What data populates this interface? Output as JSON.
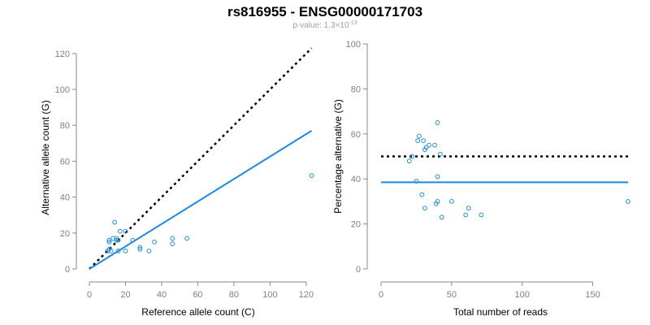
{
  "title": "rs816955 - ENSG00000171703",
  "subtitle": {
    "prefix": "p-value: 1.3×10",
    "exponent": "-13"
  },
  "colors": {
    "points": "#1f8fd6",
    "fit_line": "#1e88e5",
    "reference_line": "#000000",
    "axis": "#888888",
    "tick_text": "#7f7f7f"
  },
  "chart_data": [
    {
      "type": "scatter",
      "title": "",
      "xlabel": "Reference allele count (C)",
      "ylabel": "Alternative allele count (G)",
      "xlim": [
        0,
        125
      ],
      "ylim": [
        0,
        124
      ],
      "xticks": [
        0,
        20,
        40,
        60,
        80,
        100,
        120
      ],
      "yticks": [
        0,
        20,
        40,
        60,
        80,
        100,
        120
      ],
      "points": [
        {
          "x": 10,
          "y": 10
        },
        {
          "x": 11,
          "y": 11
        },
        {
          "x": 11,
          "y": 15
        },
        {
          "x": 11,
          "y": 16
        },
        {
          "x": 12,
          "y": 10
        },
        {
          "x": 13,
          "y": 17
        },
        {
          "x": 14,
          "y": 26
        },
        {
          "x": 15,
          "y": 17
        },
        {
          "x": 15,
          "y": 16
        },
        {
          "x": 16,
          "y": 16
        },
        {
          "x": 16,
          "y": 10
        },
        {
          "x": 17,
          "y": 21
        },
        {
          "x": 20,
          "y": 10
        },
        {
          "x": 20,
          "y": 21
        },
        {
          "x": 24,
          "y": 16
        },
        {
          "x": 28,
          "y": 12
        },
        {
          "x": 28,
          "y": 11
        },
        {
          "x": 33,
          "y": 10
        },
        {
          "x": 36,
          "y": 15
        },
        {
          "x": 46,
          "y": 17
        },
        {
          "x": 46,
          "y": 14
        },
        {
          "x": 54,
          "y": 17
        },
        {
          "x": 123,
          "y": 52
        }
      ],
      "lines": [
        {
          "name": "expected (equal counts)",
          "style": "dotted",
          "color": "#000000",
          "x": [
            0,
            123
          ],
          "y": [
            0,
            123
          ]
        },
        {
          "name": "fit",
          "style": "solid",
          "color": "#1e88e5",
          "x": [
            0,
            123
          ],
          "y": [
            0,
            77
          ]
        }
      ]
    },
    {
      "type": "scatter",
      "title": "",
      "xlabel": "Total number of reads",
      "ylabel": "Percentage alternative (G)",
      "xlim": [
        0,
        175
      ],
      "ylim": [
        0,
        100
      ],
      "xticks": [
        0,
        50,
        100,
        150
      ],
      "yticks": [
        0,
        20,
        40,
        60,
        80,
        100
      ],
      "points": [
        {
          "x": 20,
          "y": 48
        },
        {
          "x": 22,
          "y": 50
        },
        {
          "x": 25,
          "y": 39
        },
        {
          "x": 26,
          "y": 57
        },
        {
          "x": 27,
          "y": 59
        },
        {
          "x": 29,
          "y": 33
        },
        {
          "x": 30,
          "y": 57
        },
        {
          "x": 31,
          "y": 53
        },
        {
          "x": 31,
          "y": 27
        },
        {
          "x": 32,
          "y": 54
        },
        {
          "x": 34,
          "y": 55
        },
        {
          "x": 38,
          "y": 55
        },
        {
          "x": 39,
          "y": 29
        },
        {
          "x": 40,
          "y": 65
        },
        {
          "x": 40,
          "y": 41
        },
        {
          "x": 40,
          "y": 30
        },
        {
          "x": 42,
          "y": 51
        },
        {
          "x": 43,
          "y": 23
        },
        {
          "x": 50,
          "y": 30
        },
        {
          "x": 60,
          "y": 24
        },
        {
          "x": 62,
          "y": 27
        },
        {
          "x": 71,
          "y": 24
        },
        {
          "x": 175,
          "y": 30
        }
      ],
      "lines": [
        {
          "name": "expected 50%",
          "style": "dotted",
          "color": "#000000",
          "x": [
            0,
            175
          ],
          "y": [
            50,
            50
          ]
        },
        {
          "name": "mean",
          "style": "solid",
          "color": "#1e88e5",
          "x": [
            0,
            175
          ],
          "y": [
            38.5,
            38.5
          ]
        }
      ]
    }
  ]
}
